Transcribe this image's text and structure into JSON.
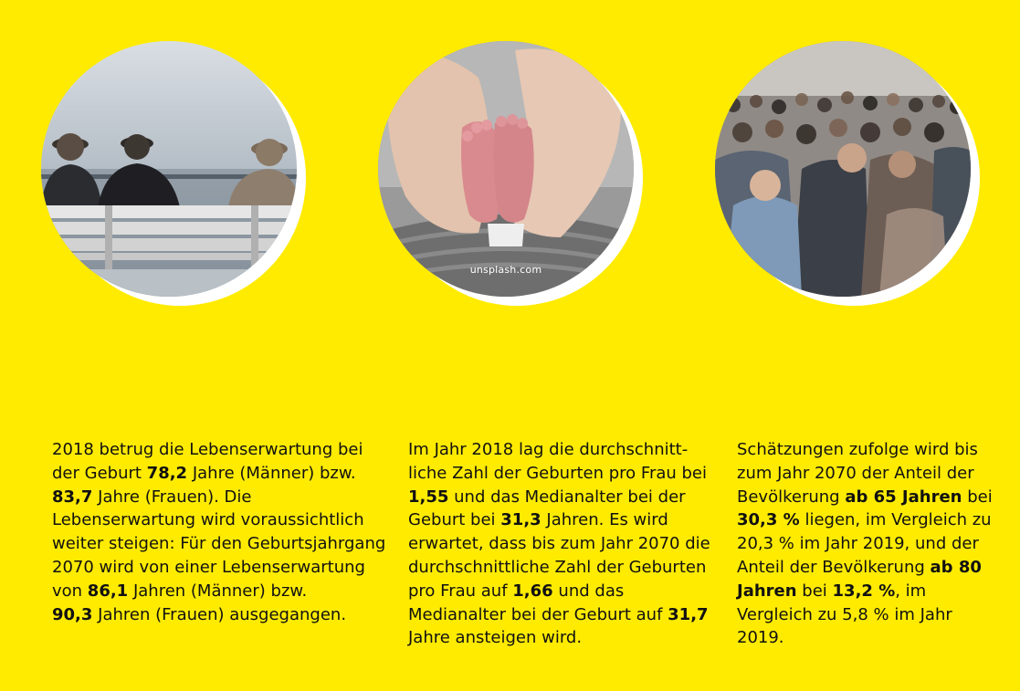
{
  "images": [
    {
      "name": "seniors-on-bench-image"
    },
    {
      "name": "baby-feet-image",
      "credit": "unsplash.com"
    },
    {
      "name": "crowd-image"
    }
  ],
  "columns": [
    {
      "segments": [
        {
          "t": "2018 betrug die Lebenserwartung bei der Geburt "
        },
        {
          "t": "78,2",
          "b": true
        },
        {
          "t": " Jahre (Männer) bzw. "
        },
        {
          "br": true
        },
        {
          "t": "83,7",
          "b": true
        },
        {
          "t": " Jahre (Frauen). Die Lebenserwartung wird voraussichtlich weiter steigen: Für den Geburtsjahrgang 2070 wird von einer Lebenserwartung von "
        },
        {
          "t": "86,1",
          "b": true
        },
        {
          "t": " Jahren (Männer) bzw. "
        },
        {
          "br": true
        },
        {
          "t": "90,3",
          "b": true
        },
        {
          "t": " Jahren (Frauen) ausgegangen."
        }
      ]
    },
    {
      "segments": [
        {
          "t": "Im Jahr 2018 lag die durchschnitt-"
        },
        {
          "br": true
        },
        {
          "t": "liche Zahl der Geburten pro Frau bei "
        },
        {
          "t": "1,55",
          "b": true
        },
        {
          "t": " und das Medianalter bei der Geburt bei "
        },
        {
          "t": "31,3",
          "b": true
        },
        {
          "t": " Jahren. Es wird erwartet, dass bis zum Jahr 2070 die durchschnittliche Zahl der Geburten pro Frau auf "
        },
        {
          "t": "1,66",
          "b": true
        },
        {
          "t": " und das Medianalter bei der Geburt auf "
        },
        {
          "t": "31,7",
          "b": true
        },
        {
          "t": " Jahre ansteigen wird."
        }
      ]
    },
    {
      "segments": [
        {
          "t": "Schätzungen zufolge wird bis zum Jahr 2070 der Anteil der Bevölkerung "
        },
        {
          "t": "ab 65 Jahren",
          "b": true
        },
        {
          "t": " bei "
        },
        {
          "t": "30,3 %",
          "b": true
        },
        {
          "t": " liegen, im Vergleich zu 20,3 % im Jahr 2019, und der Anteil der Bevölkerung "
        },
        {
          "t": "ab 80 Jahren",
          "b": true
        },
        {
          "t": " bei "
        },
        {
          "t": "13,2 %",
          "b": true
        },
        {
          "t": ", im Vergleich zu 5,8 % im Jahr 2019."
        }
      ]
    }
  ]
}
